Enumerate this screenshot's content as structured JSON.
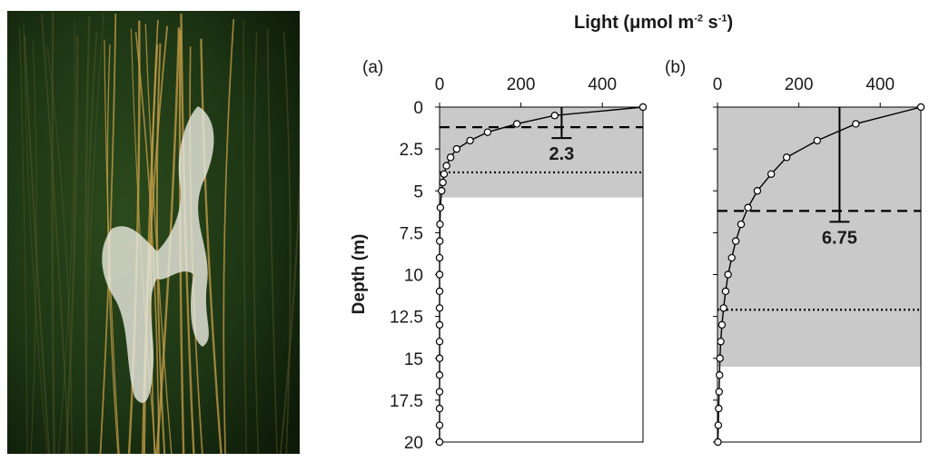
{
  "photo": {
    "subject": "underwater-kelp-photo"
  },
  "colors": {
    "shade": "#c9c9c9",
    "line": "#000000",
    "water": "#1d3514",
    "stipe": "#c9a04a",
    "tissue": "#e6e6dc"
  },
  "chart_data": {
    "type": "line",
    "title_text": "Light (μmol m",
    "title_sup1": "-2",
    "title_mid": " s",
    "title_sup2": "-1",
    "title_end": ")",
    "ylabel": "Depth (m)",
    "xlim": [
      0,
      500
    ],
    "ylim": [
      0,
      20
    ],
    "x_ticks": [
      0,
      200,
      400
    ],
    "y_ticks": [
      "0",
      "2.5",
      "5",
      "7.5",
      "10",
      "12.5",
      "15",
      "17.5",
      "20"
    ],
    "y_tick_values": [
      0,
      2.5,
      5,
      7.5,
      10,
      12.5,
      15,
      17.5,
      20
    ],
    "panels": [
      {
        "label": "(a)",
        "shaded_to_depth": 5.4,
        "dashed_depth": 1.2,
        "dotted_depth": 3.9,
        "bracket_x": 300,
        "bracket_label": "2.3",
        "series": {
          "depth": [
            0,
            0.5,
            1,
            1.5,
            2,
            2.5,
            3,
            3.5,
            4,
            4.5,
            5,
            6,
            7,
            8,
            9,
            10,
            11,
            12,
            13,
            14,
            15,
            16,
            17,
            18,
            19,
            20
          ],
          "light": [
            500,
            283,
            190,
            118,
            75,
            42,
            27,
            17,
            11,
            8,
            5,
            2,
            1,
            0.5,
            0,
            0,
            0,
            0,
            0,
            0,
            0,
            0,
            0,
            0,
            0,
            0
          ]
        }
      },
      {
        "label": "(b)",
        "shaded_to_depth": 15.5,
        "dashed_depth": 6.2,
        "dotted_depth": 12.1,
        "bracket_x": 300,
        "bracket_label": "6.75",
        "series": {
          "depth": [
            0,
            1,
            2,
            3,
            4,
            5,
            6,
            7,
            8,
            9,
            10,
            11,
            12,
            13,
            14,
            15,
            16,
            17,
            18,
            19,
            20
          ],
          "light": [
            500,
            340,
            245,
            170,
            132,
            98,
            75,
            58,
            45,
            35,
            26,
            20,
            15,
            11,
            8,
            6,
            5,
            4,
            3,
            2,
            1
          ]
        }
      }
    ]
  }
}
